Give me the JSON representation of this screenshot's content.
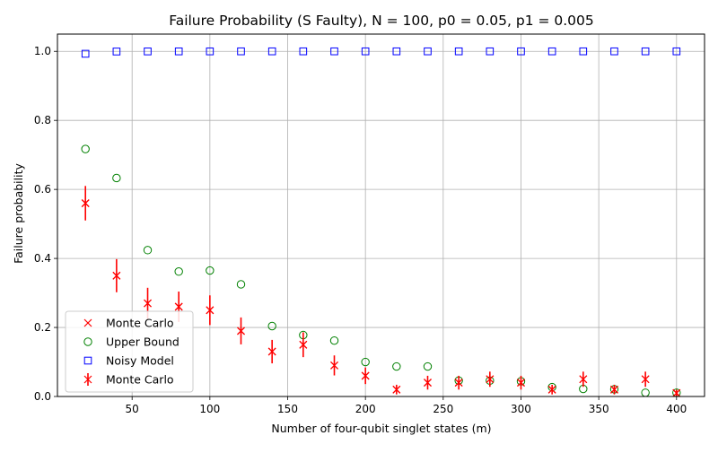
{
  "chart_data": {
    "type": "scatter",
    "title": "Failure Probability (S Faulty), N = 100, p0 = 0.05, p1 = 0.005",
    "xlabel": "Number of four-qubit singlet states (m)",
    "ylabel": "Failure probability",
    "xlim": [
      2,
      418
    ],
    "ylim": [
      0,
      1.05
    ],
    "xticks": [
      50,
      100,
      150,
      200,
      250,
      300,
      350,
      400
    ],
    "yticks": [
      0.0,
      0.2,
      0.4,
      0.6,
      0.8,
      1.0
    ],
    "xtick_labels": [
      "50",
      "100",
      "150",
      "200",
      "250",
      "300",
      "350",
      "400"
    ],
    "ytick_labels": [
      "0.0",
      "0.2",
      "0.4",
      "0.6",
      "0.8",
      "1.0"
    ],
    "grid": true,
    "legend_position": "lower-left",
    "x": [
      20,
      40,
      60,
      80,
      100,
      120,
      140,
      160,
      180,
      200,
      220,
      240,
      260,
      280,
      300,
      320,
      340,
      360,
      380,
      400
    ],
    "series": [
      {
        "name": "Monte Carlo",
        "marker": "x",
        "color": "#ff0000",
        "values": [
          0.56,
          0.35,
          0.27,
          0.26,
          0.25,
          0.19,
          0.13,
          0.15,
          0.09,
          0.06,
          0.02,
          0.04,
          0.04,
          0.05,
          0.04,
          0.02,
          0.05,
          0.02,
          0.05,
          0.01
        ]
      },
      {
        "name": "Upper Bound",
        "marker": "circle",
        "color": "#008000",
        "values": [
          0.717,
          0.633,
          0.424,
          0.362,
          0.365,
          0.325,
          0.204,
          0.178,
          0.162,
          0.1,
          0.087,
          0.087,
          0.046,
          0.046,
          0.044,
          0.027,
          0.022,
          0.021,
          0.011,
          0.011
        ]
      },
      {
        "name": "Noisy Model",
        "marker": "square",
        "color": "#0000ff",
        "values": [
          0.993,
          0.9995,
          0.9998,
          0.9999,
          0.9999,
          1.0,
          1.0,
          1.0,
          1.0,
          1.0,
          1.0,
          1.0,
          1.0,
          1.0,
          1.0,
          1.0,
          1.0,
          1.0,
          1.0,
          1.0
        ]
      },
      {
        "name": "Monte Carlo",
        "marker": "x-errorbar",
        "color": "#ff0000",
        "values": [
          0.56,
          0.35,
          0.27,
          0.26,
          0.25,
          0.19,
          0.13,
          0.15,
          0.09,
          0.06,
          0.02,
          0.04,
          0.04,
          0.05,
          0.04,
          0.02,
          0.05,
          0.02,
          0.05,
          0.01
        ],
        "errors": [
          0.05,
          0.048,
          0.045,
          0.044,
          0.043,
          0.039,
          0.034,
          0.036,
          0.029,
          0.024,
          0.014,
          0.02,
          0.02,
          0.022,
          0.02,
          0.014,
          0.022,
          0.014,
          0.022,
          0.01
        ]
      }
    ]
  }
}
